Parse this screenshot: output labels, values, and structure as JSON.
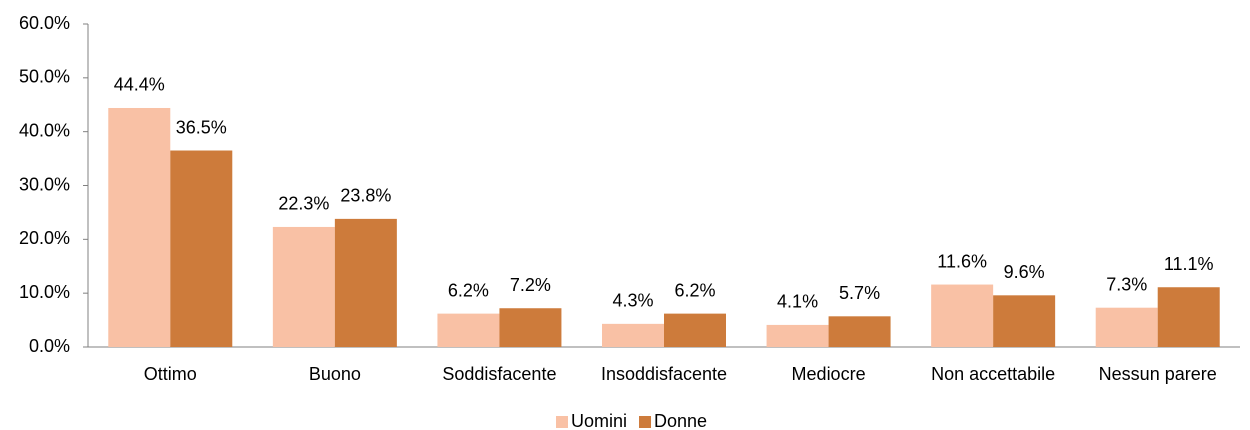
{
  "chart_data": {
    "type": "bar",
    "categories": [
      "Ottimo",
      "Buono",
      "Soddisfacente",
      "Insoddisfacente",
      "Mediocre",
      "Non accettabile",
      "Nessun parere"
    ],
    "series": [
      {
        "name": "Uomini",
        "color": "#f9c1a5",
        "values": [
          44.4,
          22.3,
          6.2,
          4.3,
          4.1,
          11.6,
          7.3
        ],
        "value_labels": [
          "44.4%",
          "22.3%",
          "6.2%",
          "4.3%",
          "4.1%",
          "11.6%",
          "7.3%"
        ]
      },
      {
        "name": "Donne",
        "color": "#cd7b3b",
        "values": [
          36.5,
          23.8,
          7.2,
          6.2,
          5.7,
          9.6,
          11.1
        ],
        "value_labels": [
          "36.5%",
          "23.8%",
          "7.2%",
          "6.2%",
          "5.7%",
          "9.6%",
          "11.1%"
        ]
      }
    ],
    "ylim": [
      0,
      60
    ],
    "yticks": [
      {
        "value": 0,
        "label": "0.0%"
      },
      {
        "value": 10,
        "label": "10.0%"
      },
      {
        "value": 20,
        "label": "20.0%"
      },
      {
        "value": 30,
        "label": "30.0%"
      },
      {
        "value": 40,
        "label": "40.0%"
      },
      {
        "value": 50,
        "label": "50.0%"
      },
      {
        "value": 60,
        "label": "60.0%"
      }
    ],
    "grid": false,
    "legend": "bottom"
  }
}
